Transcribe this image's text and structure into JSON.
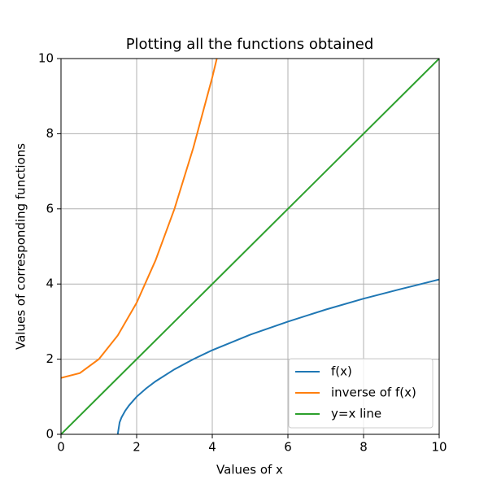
{
  "chart_data": {
    "type": "line",
    "title": "Plotting all the functions obtained",
    "xlabel": "Values of x",
    "ylabel": "Values of corresponding functions",
    "xlim": [
      0,
      10
    ],
    "ylim": [
      0,
      10
    ],
    "xticks": [
      0,
      2,
      4,
      6,
      8,
      10
    ],
    "yticks": [
      0,
      2,
      4,
      6,
      8,
      10
    ],
    "grid": true,
    "legend": "lower right",
    "series": [
      {
        "name": "f(x)",
        "color": "#1f77b4",
        "x": [
          1.5,
          1.55,
          1.6,
          1.7,
          1.8,
          2,
          2.25,
          2.5,
          3,
          3.5,
          4,
          5,
          6,
          7,
          8,
          9,
          10
        ],
        "values": [
          0,
          0.32,
          0.45,
          0.63,
          0.77,
          1,
          1.22,
          1.41,
          1.73,
          2,
          2.24,
          2.65,
          3,
          3.32,
          3.61,
          3.87,
          4.12
        ]
      },
      {
        "name": "inverse of f(x)",
        "color": "#ff7f0e",
        "x": [
          0,
          0.5,
          1,
          1.5,
          2,
          2.5,
          3,
          3.5,
          4,
          4.12
        ],
        "values": [
          1.5,
          1.63,
          2,
          2.63,
          3.5,
          4.63,
          6,
          7.63,
          9.5,
          10
        ]
      },
      {
        "name": "y=x line",
        "color": "#2ca02c",
        "x": [
          0,
          10
        ],
        "values": [
          0,
          10
        ]
      }
    ]
  }
}
